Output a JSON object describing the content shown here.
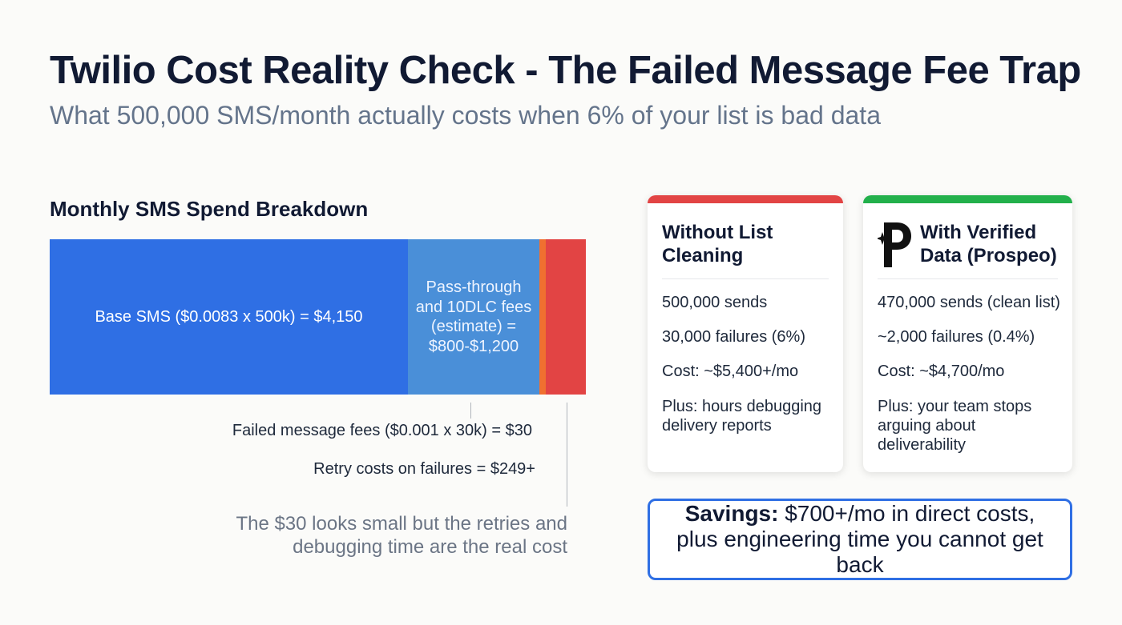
{
  "header": {
    "title": "Twilio Cost Reality Check - The Failed Message Fee Trap",
    "subtitle": "What 500,000 SMS/month actually costs when 6% of your list is bad data"
  },
  "breakdown": {
    "title": "Monthly SMS Spend Breakdown",
    "segments": [
      "Base SMS ($0.0083 x 500k) = $4,150",
      "Pass-through and 10DLC fees (estimate) = $800-$1,200"
    ],
    "callouts": [
      "Failed message fees ($0.001 x 30k) = $30",
      "Retry costs on failures = $249+"
    ],
    "note": "The $30 looks small but the retries and debugging time are the real cost"
  },
  "cards": [
    {
      "title": "Without List Cleaning",
      "items": [
        "500,000 sends",
        "30,000 failures (6%)",
        "Cost: ~$5,400+/mo",
        "Plus: hours debugging delivery reports"
      ]
    },
    {
      "title": "With Verified Data (Prospeo)",
      "items": [
        "470,000 sends (clean list)",
        "~2,000 failures (0.4%)",
        "Cost: ~$4,700/mo",
        "Plus: your team stops arguing about deliverability"
      ]
    }
  ],
  "savings": {
    "label": "Savings:",
    "text": "$700+/mo in direct costs, plus engineering time you cannot get back"
  }
}
